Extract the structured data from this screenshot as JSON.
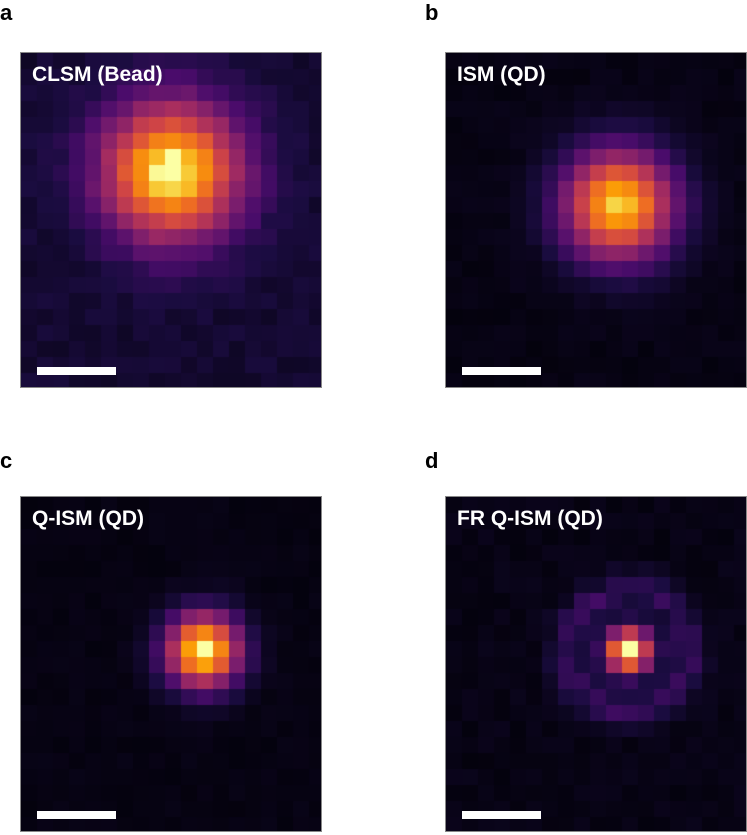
{
  "figure": {
    "colormap": "inferno",
    "panels": [
      {
        "letter": "a",
        "title": "CLSM (Bead)"
      },
      {
        "letter": "b",
        "title": "ISM (QD)"
      },
      {
        "letter": "c",
        "title": "Q-ISM (QD)"
      },
      {
        "letter": "d",
        "title": "FR Q-ISM (QD)"
      }
    ]
  }
}
